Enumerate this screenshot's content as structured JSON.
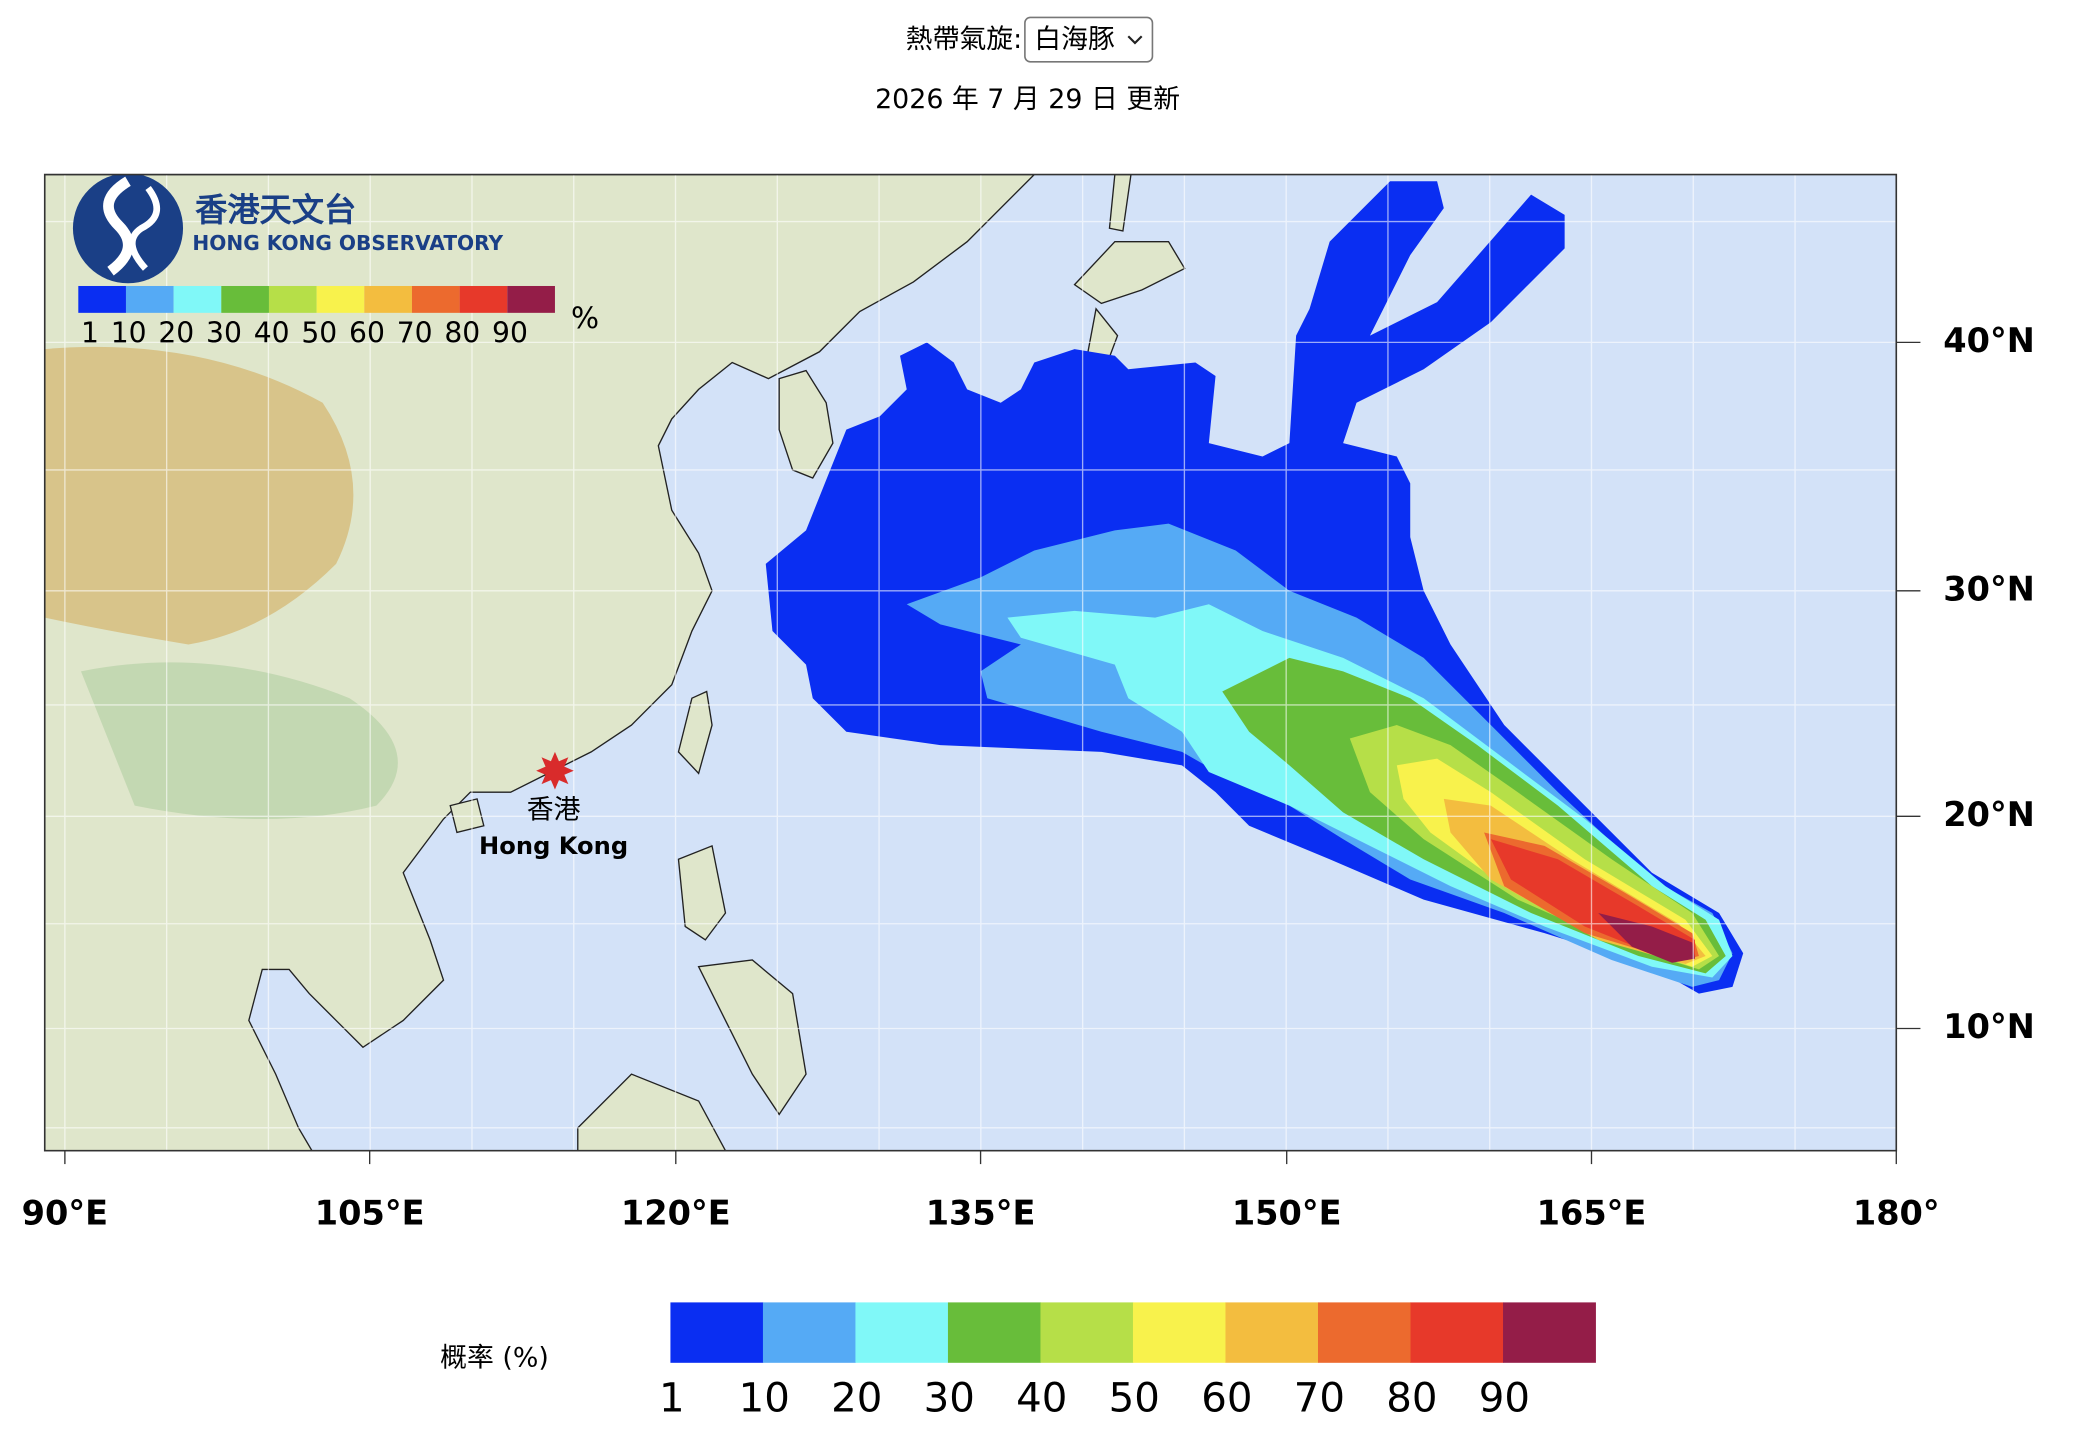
{
  "header": {
    "selector_label": "熱帶氣旋:",
    "selector_value": "白海豚",
    "updated": "2026 年 7 月 29 日 更新"
  },
  "map": {
    "logo": {
      "name_zh": "香港天文台",
      "name_en": "HONG KONG OBSERVATORY"
    },
    "inset_legend": {
      "labels": [
        1,
        10,
        20,
        30,
        40,
        50,
        60,
        70,
        80,
        90
      ],
      "unit": "%"
    },
    "place": {
      "name_zh": "香港",
      "name_en": "Hong Kong"
    },
    "lon_labels": [
      "90°E",
      "105°E",
      "120°E",
      "135°E",
      "150°E",
      "165°E",
      "180°"
    ],
    "lat_labels": [
      "40°N",
      "30°N",
      "20°N",
      "10°N"
    ]
  },
  "colorbar": {
    "title": "概率 (%)",
    "labels": [
      1,
      10,
      20,
      30,
      40,
      50,
      60,
      70,
      80,
      90
    ],
    "colors": [
      "#0a2ef2",
      "#55aaf5",
      "#80f8f8",
      "#68bd3a",
      "#b6df48",
      "#f8f24c",
      "#f3bd3f",
      "#ec6a2e",
      "#e7392a",
      "#941d48"
    ]
  }
}
